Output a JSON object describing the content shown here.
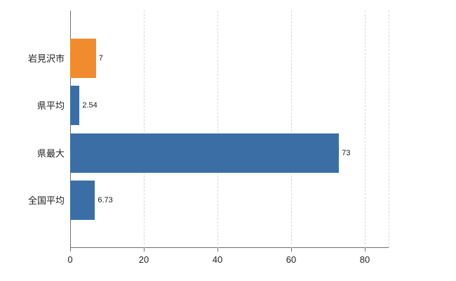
{
  "chart_data": {
    "type": "bar",
    "orientation": "horizontal",
    "title": "",
    "xlabel": "",
    "ylabel": "",
    "categories": [
      "岩見沢市",
      "県平均",
      "県最大",
      "全国平均"
    ],
    "values": [
      7,
      2.54,
      73,
      6.73
    ],
    "value_labels": [
      "7",
      "2.54",
      "73",
      "6.73"
    ],
    "bar_colors": [
      "#f08c2e",
      "#3b6ea5",
      "#3b6ea5",
      "#3b6ea5"
    ],
    "x_ticks": [
      0,
      20,
      40,
      60,
      80
    ],
    "xlim": [
      0,
      86.7
    ],
    "grid": "vertical-dashed",
    "gridline_color": "#d8d8d8",
    "axis_color": "#6e6e6e",
    "legend_position": "none"
  }
}
